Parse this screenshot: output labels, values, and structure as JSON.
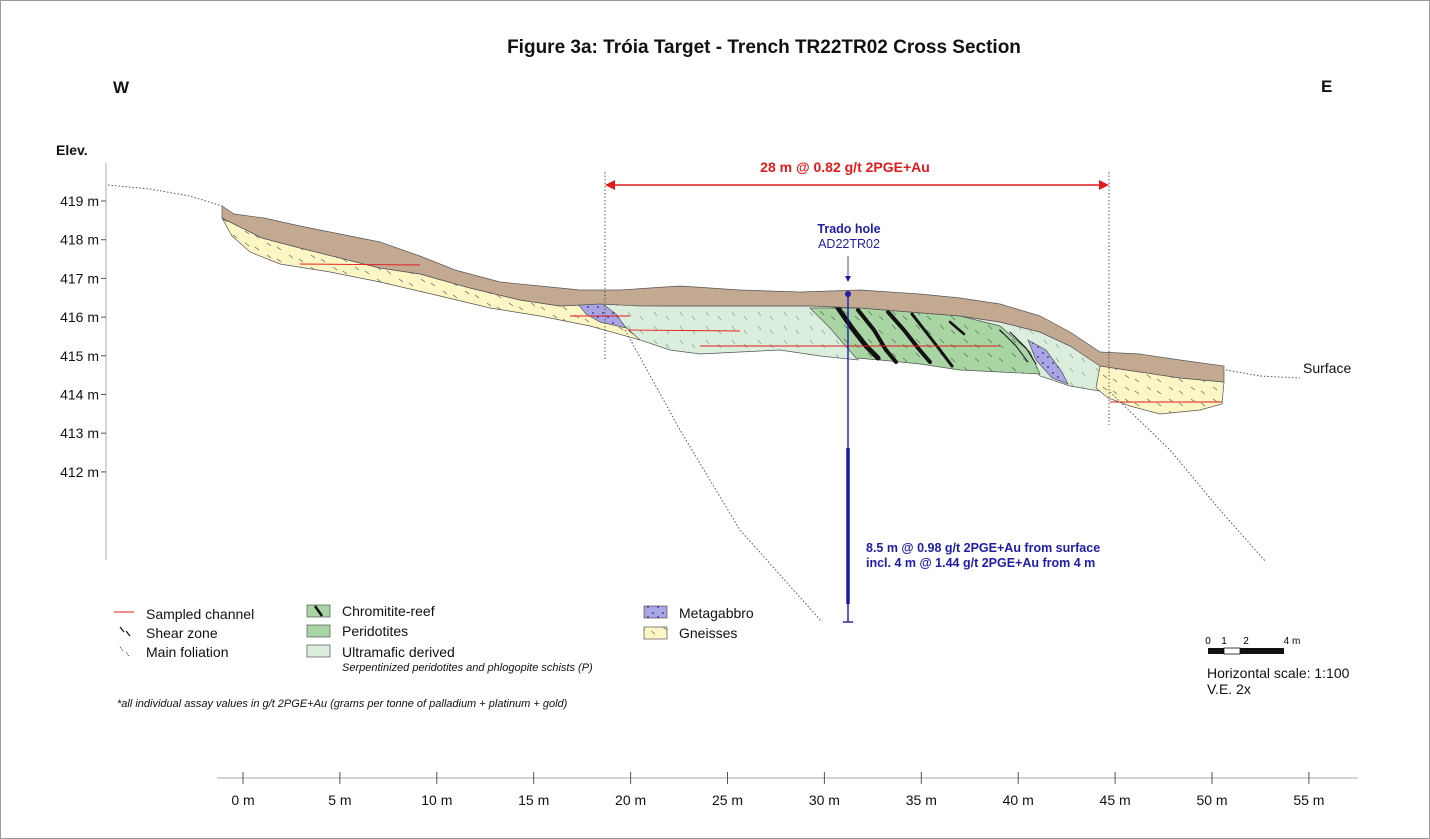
{
  "title": "Figure 3a: Tróia Target - Trench TR22TR02 Cross Section",
  "west_label": "W",
  "east_label": "E",
  "elev_label": "Elev.",
  "elevation_ticks": [
    "419 m",
    "418 m",
    "417 m",
    "416 m",
    "415 m",
    "414 m",
    "413 m",
    "412 m"
  ],
  "distance_ticks": [
    "0 m",
    "5 m",
    "10 m",
    "15 m",
    "20 m",
    "25 m",
    "30 m",
    "35 m",
    "40 m",
    "45 m",
    "50 m",
    "55 m"
  ],
  "intercept_label": "28 m @ 0.82 g/t 2PGE+Au",
  "hole_label_1": "Trado hole",
  "hole_label_2": "AD22TR02",
  "hole_result_1": "8.5 m @ 0.98 g/t 2PGE+Au from surface",
  "hole_result_2": "incl. 4 m @ 1.44 g/t 2PGE+Au from 4 m",
  "surface_label": "Surface",
  "legend": {
    "sampled_channel": "Sampled channel",
    "shear_zone": "Shear zone",
    "main_foliation": "Main foliation",
    "chromitite_reef": "Chromitite-reef",
    "peridotites": "Peridotites",
    "ultramafic_derived": "Ultramafic derived",
    "ultramafic_sub": "Serpentinized peridotites and phlogopite schists (P)",
    "metagabbro": "Metagabbro",
    "gneisses": "Gneisses"
  },
  "scale_bar_ticks": [
    "0",
    "1",
    "2",
    "4 m"
  ],
  "horizontal_scale": "Horizontal scale: 1:100",
  "vertical_exaggeration": "V.E. 2x",
  "footnote": "*all individual assay values in g/t 2PGE+Au (grams per tonne of palladium + platinum + gold)",
  "colors": {
    "soil": "#c4a992",
    "gneiss": "#fbf6c4",
    "ultramafic": "#dbeedd",
    "peridotite": "#a9d5a4",
    "metagabbro": "#a9a6e6",
    "intercept_red": "#e11b1b",
    "hole_blue": "#1d1da6"
  }
}
